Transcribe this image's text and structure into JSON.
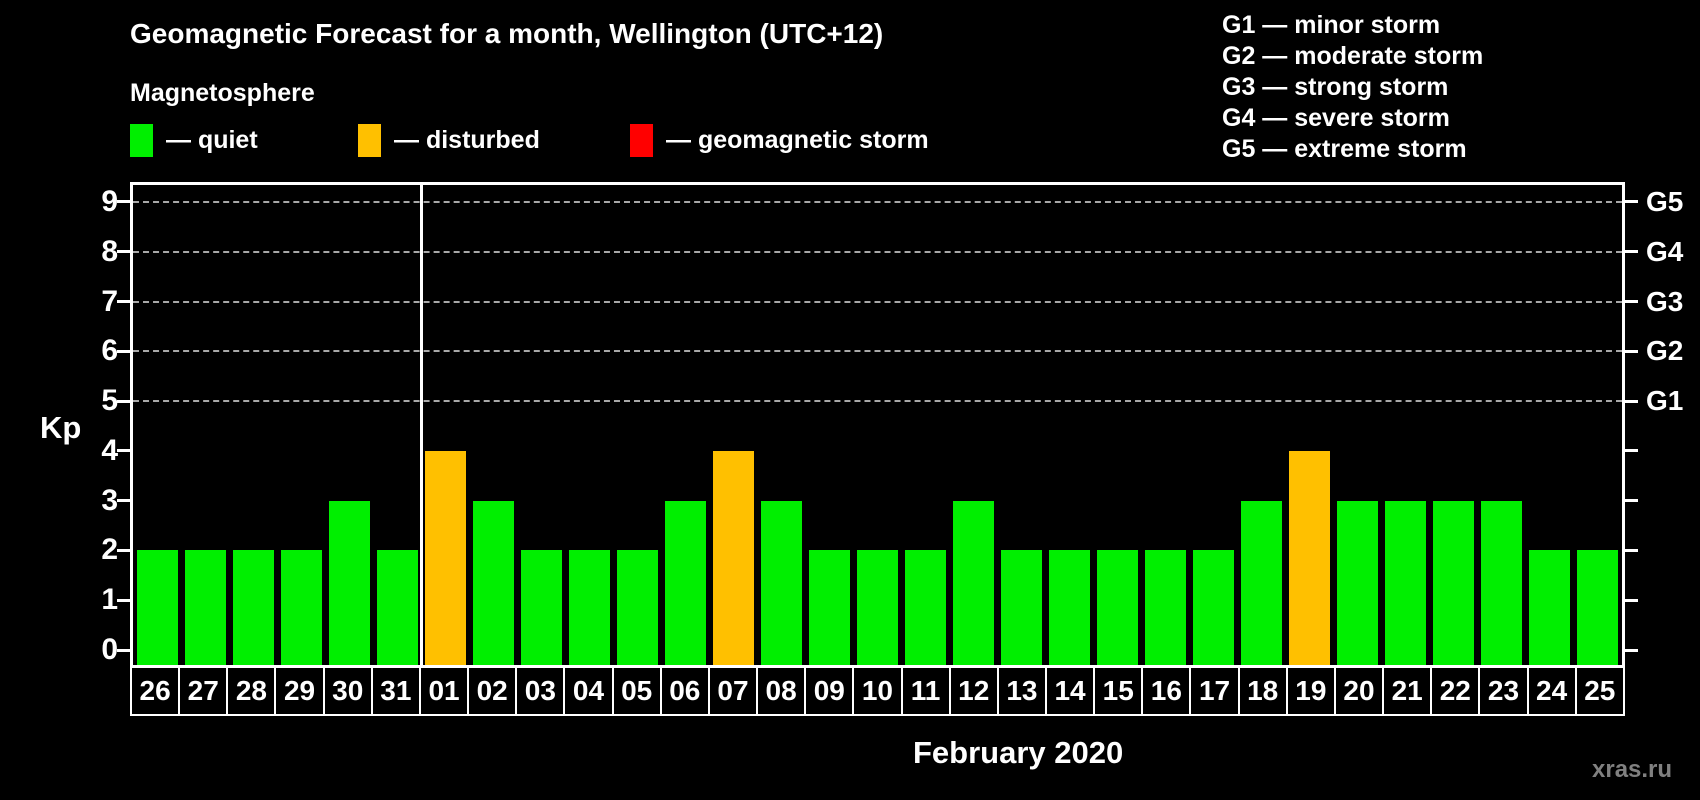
{
  "header": {
    "title": "Geomagnetic Forecast for a month, Wellington (UTC+12)",
    "subtitle": "Magnetosphere",
    "watermark": "xras.ru"
  },
  "legend": [
    {
      "name": "quiet",
      "label": "— quiet",
      "color": "#00ef00"
    },
    {
      "name": "disturbed",
      "label": "— disturbed",
      "color": "#ffc000"
    },
    {
      "name": "storm",
      "label": "— geomagnetic storm",
      "color": "#ff0000"
    }
  ],
  "storm_scale": [
    "G1 — minor storm",
    "G2 — moderate storm",
    "G3 — strong storm",
    "G4 — severe storm",
    "G5 — extreme storm"
  ],
  "chart_data": {
    "type": "bar",
    "title": "Geomagnetic Forecast for a month, Wellington (UTC+12)",
    "ylabel": "Kp",
    "xlabel": "February 2020",
    "ylim": [
      0,
      9
    ],
    "yticks": [
      0,
      1,
      2,
      3,
      4,
      5,
      6,
      7,
      8,
      9
    ],
    "gridlines_at": [
      5,
      6,
      7,
      8,
      9
    ],
    "right_axis_labels": [
      {
        "kp": 5,
        "label": "G1"
      },
      {
        "kp": 6,
        "label": "G2"
      },
      {
        "kp": 7,
        "label": "G3"
      },
      {
        "kp": 8,
        "label": "G4"
      },
      {
        "kp": 9,
        "label": "G5"
      }
    ],
    "month_boundary_after_index": 5,
    "state_colors": {
      "quiet": "#00ef00",
      "disturbed": "#ffc000",
      "storm": "#ff0000"
    },
    "bars": [
      {
        "day": "26",
        "kp": 2,
        "state": "quiet"
      },
      {
        "day": "27",
        "kp": 2,
        "state": "quiet"
      },
      {
        "day": "28",
        "kp": 2,
        "state": "quiet"
      },
      {
        "day": "29",
        "kp": 2,
        "state": "quiet"
      },
      {
        "day": "30",
        "kp": 3,
        "state": "quiet"
      },
      {
        "day": "31",
        "kp": 2,
        "state": "quiet"
      },
      {
        "day": "01",
        "kp": 4,
        "state": "disturbed"
      },
      {
        "day": "02",
        "kp": 3,
        "state": "quiet"
      },
      {
        "day": "03",
        "kp": 2,
        "state": "quiet"
      },
      {
        "day": "04",
        "kp": 2,
        "state": "quiet"
      },
      {
        "day": "05",
        "kp": 2,
        "state": "quiet"
      },
      {
        "day": "06",
        "kp": 3,
        "state": "quiet"
      },
      {
        "day": "07",
        "kp": 4,
        "state": "disturbed"
      },
      {
        "day": "08",
        "kp": 3,
        "state": "quiet"
      },
      {
        "day": "09",
        "kp": 2,
        "state": "quiet"
      },
      {
        "day": "10",
        "kp": 2,
        "state": "quiet"
      },
      {
        "day": "11",
        "kp": 2,
        "state": "quiet"
      },
      {
        "day": "12",
        "kp": 3,
        "state": "quiet"
      },
      {
        "day": "13",
        "kp": 2,
        "state": "quiet"
      },
      {
        "day": "14",
        "kp": 2,
        "state": "quiet"
      },
      {
        "day": "15",
        "kp": 2,
        "state": "quiet"
      },
      {
        "day": "16",
        "kp": 2,
        "state": "quiet"
      },
      {
        "day": "17",
        "kp": 2,
        "state": "quiet"
      },
      {
        "day": "18",
        "kp": 3,
        "state": "quiet"
      },
      {
        "day": "19",
        "kp": 4,
        "state": "disturbed"
      },
      {
        "day": "20",
        "kp": 3,
        "state": "quiet"
      },
      {
        "day": "21",
        "kp": 3,
        "state": "quiet"
      },
      {
        "day": "22",
        "kp": 3,
        "state": "quiet"
      },
      {
        "day": "23",
        "kp": 3,
        "state": "quiet"
      },
      {
        "day": "24",
        "kp": 2,
        "state": "quiet"
      },
      {
        "day": "25",
        "kp": 2,
        "state": "quiet"
      }
    ]
  }
}
